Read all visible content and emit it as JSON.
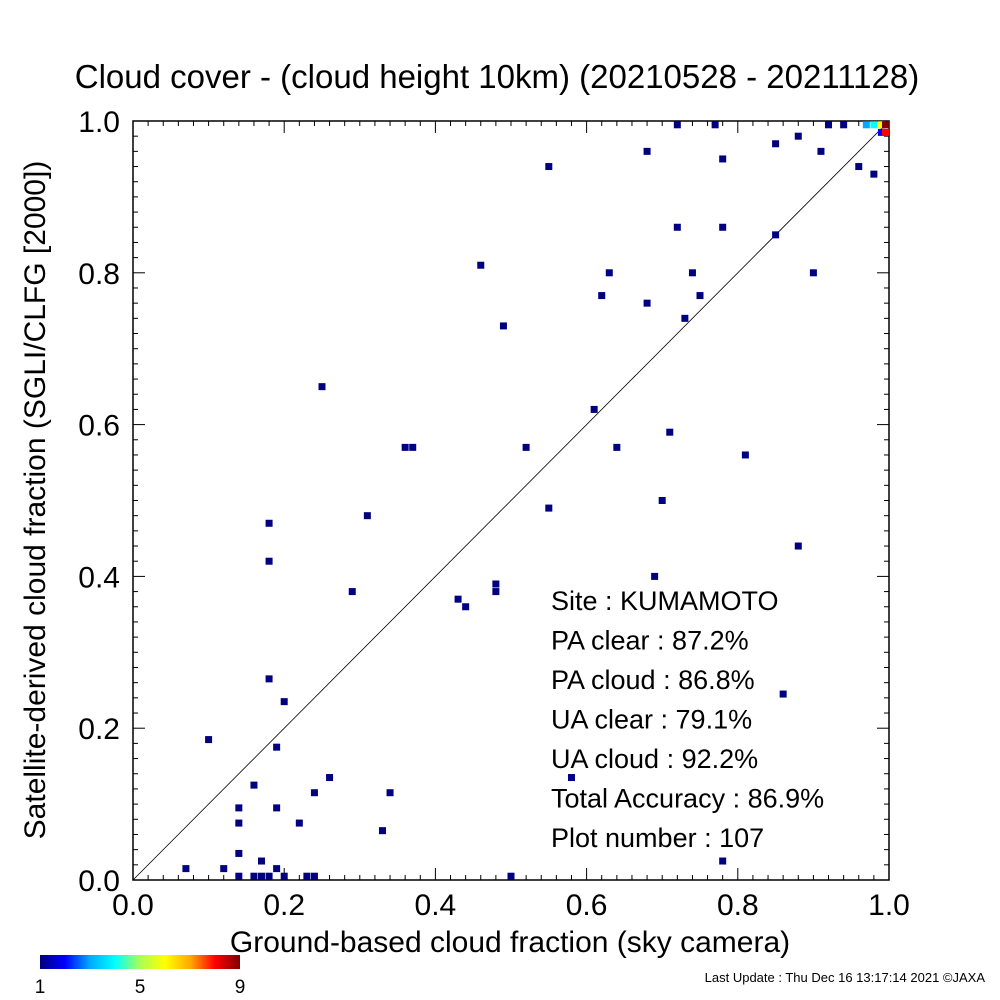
{
  "chart_data": {
    "type": "scatter",
    "title": "Cloud cover - (cloud height 10km)  (20210528 - 20211128)",
    "xlabel": "Ground-based cloud fraction (sky camera)",
    "ylabel": "Satellite-derived cloud fraction (SGLI/CLFG [2000])",
    "xlim": [
      0.0,
      1.0
    ],
    "ylim": [
      0.0,
      1.0
    ],
    "xticks": [
      "0.0",
      "0.2",
      "0.4",
      "0.6",
      "0.8",
      "1.0"
    ],
    "yticks": [
      "0.0",
      "0.2",
      "0.4",
      "0.6",
      "0.8",
      "1.0"
    ],
    "grid": false,
    "reference_line": "y = x",
    "point_color": "#000080",
    "colorbar": {
      "ticks": [
        "1",
        "5",
        "9"
      ],
      "colors": [
        "#000080",
        "#0000ff",
        "#00aaff",
        "#00ffff",
        "#aaff55",
        "#ffff00",
        "#ffaa00",
        "#ff0000",
        "#800000"
      ]
    },
    "points": [
      [
        0.07,
        0.015
      ],
      [
        0.1,
        0.185
      ],
      [
        0.12,
        0.015
      ],
      [
        0.14,
        0.035
      ],
      [
        0.14,
        0.075
      ],
      [
        0.14,
        0.095
      ],
      [
        0.14,
        0.005
      ],
      [
        0.16,
        0.125
      ],
      [
        0.16,
        0.005
      ],
      [
        0.17,
        0.025
      ],
      [
        0.17,
        0.005
      ],
      [
        0.18,
        0.47
      ],
      [
        0.18,
        0.42
      ],
      [
        0.18,
        0.265
      ],
      [
        0.18,
        0.005
      ],
      [
        0.19,
        0.175
      ],
      [
        0.19,
        0.095
      ],
      [
        0.19,
        0.015
      ],
      [
        0.2,
        0.235
      ],
      [
        0.2,
        0.005
      ],
      [
        0.22,
        0.075
      ],
      [
        0.23,
        0.005
      ],
      [
        0.24,
        0.115
      ],
      [
        0.24,
        0.005
      ],
      [
        0.25,
        0.65
      ],
      [
        0.26,
        0.135
      ],
      [
        0.29,
        0.38
      ],
      [
        0.31,
        0.48
      ],
      [
        0.33,
        0.065
      ],
      [
        0.34,
        0.115
      ],
      [
        0.36,
        0.57
      ],
      [
        0.37,
        0.57
      ],
      [
        0.43,
        0.37
      ],
      [
        0.44,
        0.36
      ],
      [
        0.46,
        0.81
      ],
      [
        0.48,
        0.39
      ],
      [
        0.48,
        0.38
      ],
      [
        0.49,
        0.73
      ],
      [
        0.5,
        0.005
      ],
      [
        0.52,
        0.57
      ],
      [
        0.55,
        0.94
      ],
      [
        0.55,
        0.49
      ],
      [
        0.58,
        0.135
      ],
      [
        0.61,
        0.62
      ],
      [
        0.62,
        0.77
      ],
      [
        0.63,
        0.8
      ],
      [
        0.64,
        0.57
      ],
      [
        0.68,
        0.96
      ],
      [
        0.68,
        0.76
      ],
      [
        0.69,
        0.4
      ],
      [
        0.7,
        0.5
      ],
      [
        0.71,
        0.59
      ],
      [
        0.72,
        0.995
      ],
      [
        0.72,
        0.86
      ],
      [
        0.73,
        0.74
      ],
      [
        0.74,
        0.8
      ],
      [
        0.75,
        0.77
      ],
      [
        0.77,
        0.995
      ],
      [
        0.78,
        0.95
      ],
      [
        0.78,
        0.86
      ],
      [
        0.78,
        0.025
      ],
      [
        0.81,
        0.56
      ],
      [
        0.85,
        0.97
      ],
      [
        0.85,
        0.85
      ],
      [
        0.86,
        0.245
      ],
      [
        0.88,
        0.98
      ],
      [
        0.88,
        0.44
      ],
      [
        0.9,
        0.8
      ],
      [
        0.91,
        0.96
      ],
      [
        0.92,
        0.995
      ],
      [
        0.94,
        0.995
      ],
      [
        0.96,
        0.94
      ],
      [
        0.98,
        0.93
      ]
    ],
    "dense_cells": [
      {
        "x": 0.97,
        "y": 0.995,
        "count": 3
      },
      {
        "x": 0.98,
        "y": 0.995,
        "count": 4
      },
      {
        "x": 0.99,
        "y": 0.995,
        "count": 6
      },
      {
        "x": 0.99,
        "y": 0.985,
        "count": 2
      },
      {
        "x": 1.0,
        "y": 0.995,
        "count": 9
      },
      {
        "x": 1.0,
        "y": 0.985,
        "count": 8
      }
    ],
    "stats": [
      {
        "label": "Site : KUMAMOTO"
      },
      {
        "label": "PA clear :  87.2%"
      },
      {
        "label": "PA cloud :  86.8%"
      },
      {
        "label": "UA clear :  79.1%"
      },
      {
        "label": "UA cloud :  92.2%"
      },
      {
        "label": "Total Accuracy :  86.9%"
      },
      {
        "label": "Plot number :       107"
      }
    ]
  },
  "footer": "Last Update : Thu Dec 16 13:17:14 2021  ©JAXA"
}
